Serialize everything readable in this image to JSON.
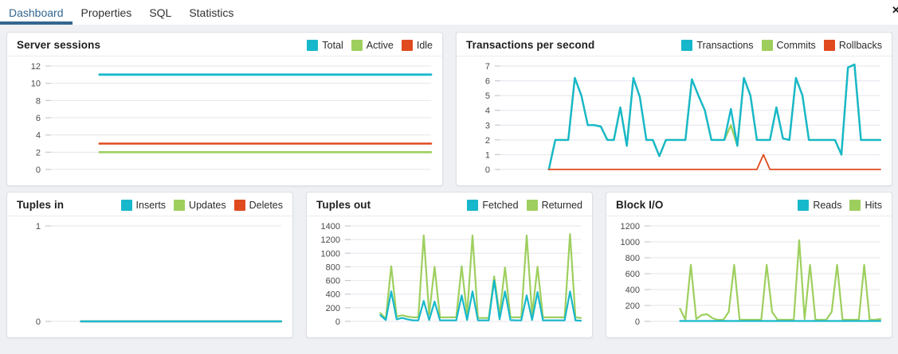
{
  "icons": {
    "close": "✕"
  },
  "colors": {
    "accent_tab": "#326690",
    "cyan": "#17b8cb",
    "green": "#9ecf5e",
    "red": "#e04a1f",
    "grid": "#e4e4ee",
    "page_bg": "#eef0f4"
  },
  "tabs": {
    "items": [
      {
        "label": "Dashboard",
        "active": true
      },
      {
        "label": "Properties",
        "active": false
      },
      {
        "label": "SQL",
        "active": false
      },
      {
        "label": "Statistics",
        "active": false
      }
    ]
  },
  "panels": [
    {
      "title": "Server sessions",
      "legend": [
        {
          "label": "Total",
          "color": "#17b8cb"
        },
        {
          "label": "Active",
          "color": "#9ecf5e"
        },
        {
          "label": "Idle",
          "color": "#e04a1f"
        }
      ],
      "chart_data": {
        "type": "line",
        "title": "Server sessions",
        "ylim": [
          0,
          12
        ],
        "yticks": [
          0,
          2,
          4,
          6,
          8,
          10,
          12
        ],
        "grid": true,
        "legend_position": "top-right",
        "start_frac": 0.14,
        "points": 52,
        "series": [
          {
            "name": "Active",
            "color": "#9ecf5e",
            "constant": 2,
            "width": 2.6
          },
          {
            "name": "Idle",
            "color": "#e04a1f",
            "constant": 3,
            "width": 2.6
          },
          {
            "name": "Total",
            "color": "#17b8cb",
            "constant": 11,
            "width": 2.8
          }
        ]
      }
    },
    {
      "title": "Transactions per second",
      "legend": [
        {
          "label": "Transactions",
          "color": "#17b8cb"
        },
        {
          "label": "Commits",
          "color": "#9ecf5e"
        },
        {
          "label": "Rollbacks",
          "color": "#e04a1f"
        }
      ],
      "chart_data": {
        "type": "line",
        "title": "Transactions per second",
        "ylim": [
          0,
          7
        ],
        "yticks": [
          0,
          1,
          2,
          3,
          4,
          5,
          6,
          7
        ],
        "grid": true,
        "legend_position": "top-right",
        "start_frac": 0.14,
        "series": [
          {
            "name": "Commits",
            "color": "#9ecf5e",
            "width": 2.4,
            "values": [
              0,
              2,
              2,
              2,
              6.2,
              5,
              3,
              3,
              2.9,
              2,
              2,
              4.2,
              1.6,
              6.2,
              4.9,
              2,
              2,
              0.9,
              2,
              2,
              2,
              2,
              6.1,
              5,
              4,
              2,
              2,
              2,
              3,
              1.6,
              6.2,
              5,
              2,
              2,
              2,
              4.2,
              2.1,
              2,
              6.2,
              5,
              2,
              2,
              2,
              2,
              2,
              1,
              6.9,
              7.1,
              2,
              2,
              2,
              2
            ]
          },
          {
            "name": "Transactions",
            "color": "#17b8cb",
            "width": 2.4,
            "values": [
              0,
              2,
              2,
              2,
              6.2,
              5,
              3,
              3,
              2.9,
              2,
              2,
              4.2,
              1.6,
              6.2,
              4.9,
              2,
              2,
              0.9,
              2,
              2,
              2,
              2,
              6.1,
              5,
              4,
              2,
              2,
              2,
              4.1,
              1.6,
              6.2,
              5,
              2,
              2,
              2,
              4.2,
              2.1,
              2,
              6.2,
              5,
              2,
              2,
              2,
              2,
              2,
              1,
              6.9,
              7.1,
              2,
              2,
              2,
              2
            ]
          },
          {
            "name": "Rollbacks",
            "color": "#e04a1f",
            "width": 1.8,
            "values": [
              0,
              0,
              0,
              0,
              0,
              0,
              0,
              0,
              0,
              0,
              0,
              0,
              0,
              0,
              0,
              0,
              0,
              0,
              0,
              0,
              0,
              0,
              0,
              0,
              0,
              0,
              0,
              0,
              0,
              0,
              0,
              0,
              0,
              1,
              0,
              0,
              0,
              0,
              0,
              0,
              0,
              0,
              0,
              0,
              0,
              0,
              0,
              0,
              0,
              0,
              0,
              0
            ]
          }
        ]
      }
    },
    {
      "title": "Tuples in",
      "legend": [
        {
          "label": "Inserts",
          "color": "#17b8cb"
        },
        {
          "label": "Updates",
          "color": "#9ecf5e"
        },
        {
          "label": "Deletes",
          "color": "#e04a1f"
        }
      ],
      "chart_data": {
        "type": "line",
        "title": "Tuples in",
        "ylim": [
          0,
          1
        ],
        "yticks": [
          0,
          1
        ],
        "grid": true,
        "legend_position": "top-right",
        "start_frac": 0.15,
        "points": 50,
        "series": [
          {
            "name": "Updates",
            "color": "#9ecf5e",
            "constant": 0,
            "width": 2.2
          },
          {
            "name": "Deletes",
            "color": "#e04a1f",
            "constant": 0,
            "width": 2.2
          },
          {
            "name": "Inserts",
            "color": "#17b8cb",
            "constant": 0,
            "width": 2.4
          }
        ]
      }
    },
    {
      "title": "Tuples out",
      "legend": [
        {
          "label": "Fetched",
          "color": "#17b8cb"
        },
        {
          "label": "Returned",
          "color": "#9ecf5e"
        }
      ],
      "chart_data": {
        "type": "line",
        "title": "Tuples out",
        "ylim": [
          0,
          1400
        ],
        "yticks": [
          0,
          200,
          400,
          600,
          800,
          1000,
          1200,
          1400
        ],
        "grid": true,
        "legend_position": "top-right",
        "start_frac": 0.15,
        "series": [
          {
            "name": "Returned",
            "color": "#9ecf5e",
            "width": 2.2,
            "values": [
              120,
              40,
              810,
              70,
              90,
              70,
              60,
              60,
              1260,
              100,
              800,
              60,
              60,
              60,
              60,
              810,
              100,
              1260,
              50,
              50,
              50,
              660,
              100,
              790,
              60,
              60,
              60,
              1260,
              100,
              800,
              60,
              60,
              60,
              60,
              60,
              1280,
              60,
              50
            ]
          },
          {
            "name": "Fetched",
            "color": "#17b8cb",
            "width": 2.2,
            "values": [
              90,
              20,
              440,
              30,
              50,
              30,
              15,
              15,
              300,
              20,
              290,
              15,
              15,
              15,
              15,
              380,
              20,
              440,
              15,
              15,
              15,
              600,
              30,
              440,
              20,
              15,
              15,
              380,
              20,
              430,
              15,
              15,
              15,
              15,
              15,
              440,
              15,
              10
            ]
          }
        ]
      }
    },
    {
      "title": "Block I/O",
      "legend": [
        {
          "label": "Reads",
          "color": "#17b8cb"
        },
        {
          "label": "Hits",
          "color": "#9ecf5e"
        }
      ],
      "chart_data": {
        "type": "line",
        "title": "Block I/O",
        "ylim": [
          0,
          1200
        ],
        "yticks": [
          0,
          200,
          400,
          600,
          800,
          1000,
          1200
        ],
        "grid": true,
        "legend_position": "top-right",
        "start_frac": 0.15,
        "series": [
          {
            "name": "Hits",
            "color": "#9ecf5e",
            "width": 2.2,
            "values": [
              160,
              20,
              710,
              30,
              80,
              90,
              40,
              20,
              20,
              120,
              710,
              20,
              20,
              20,
              20,
              20,
              710,
              120,
              20,
              20,
              20,
              20,
              1020,
              30,
              710,
              20,
              20,
              20,
              120,
              710,
              20,
              20,
              20,
              20,
              710,
              20,
              20,
              30
            ]
          },
          {
            "name": "Reads",
            "color": "#17b8cb",
            "constant": 5,
            "points": 38,
            "width": 2.2
          }
        ]
      }
    }
  ]
}
